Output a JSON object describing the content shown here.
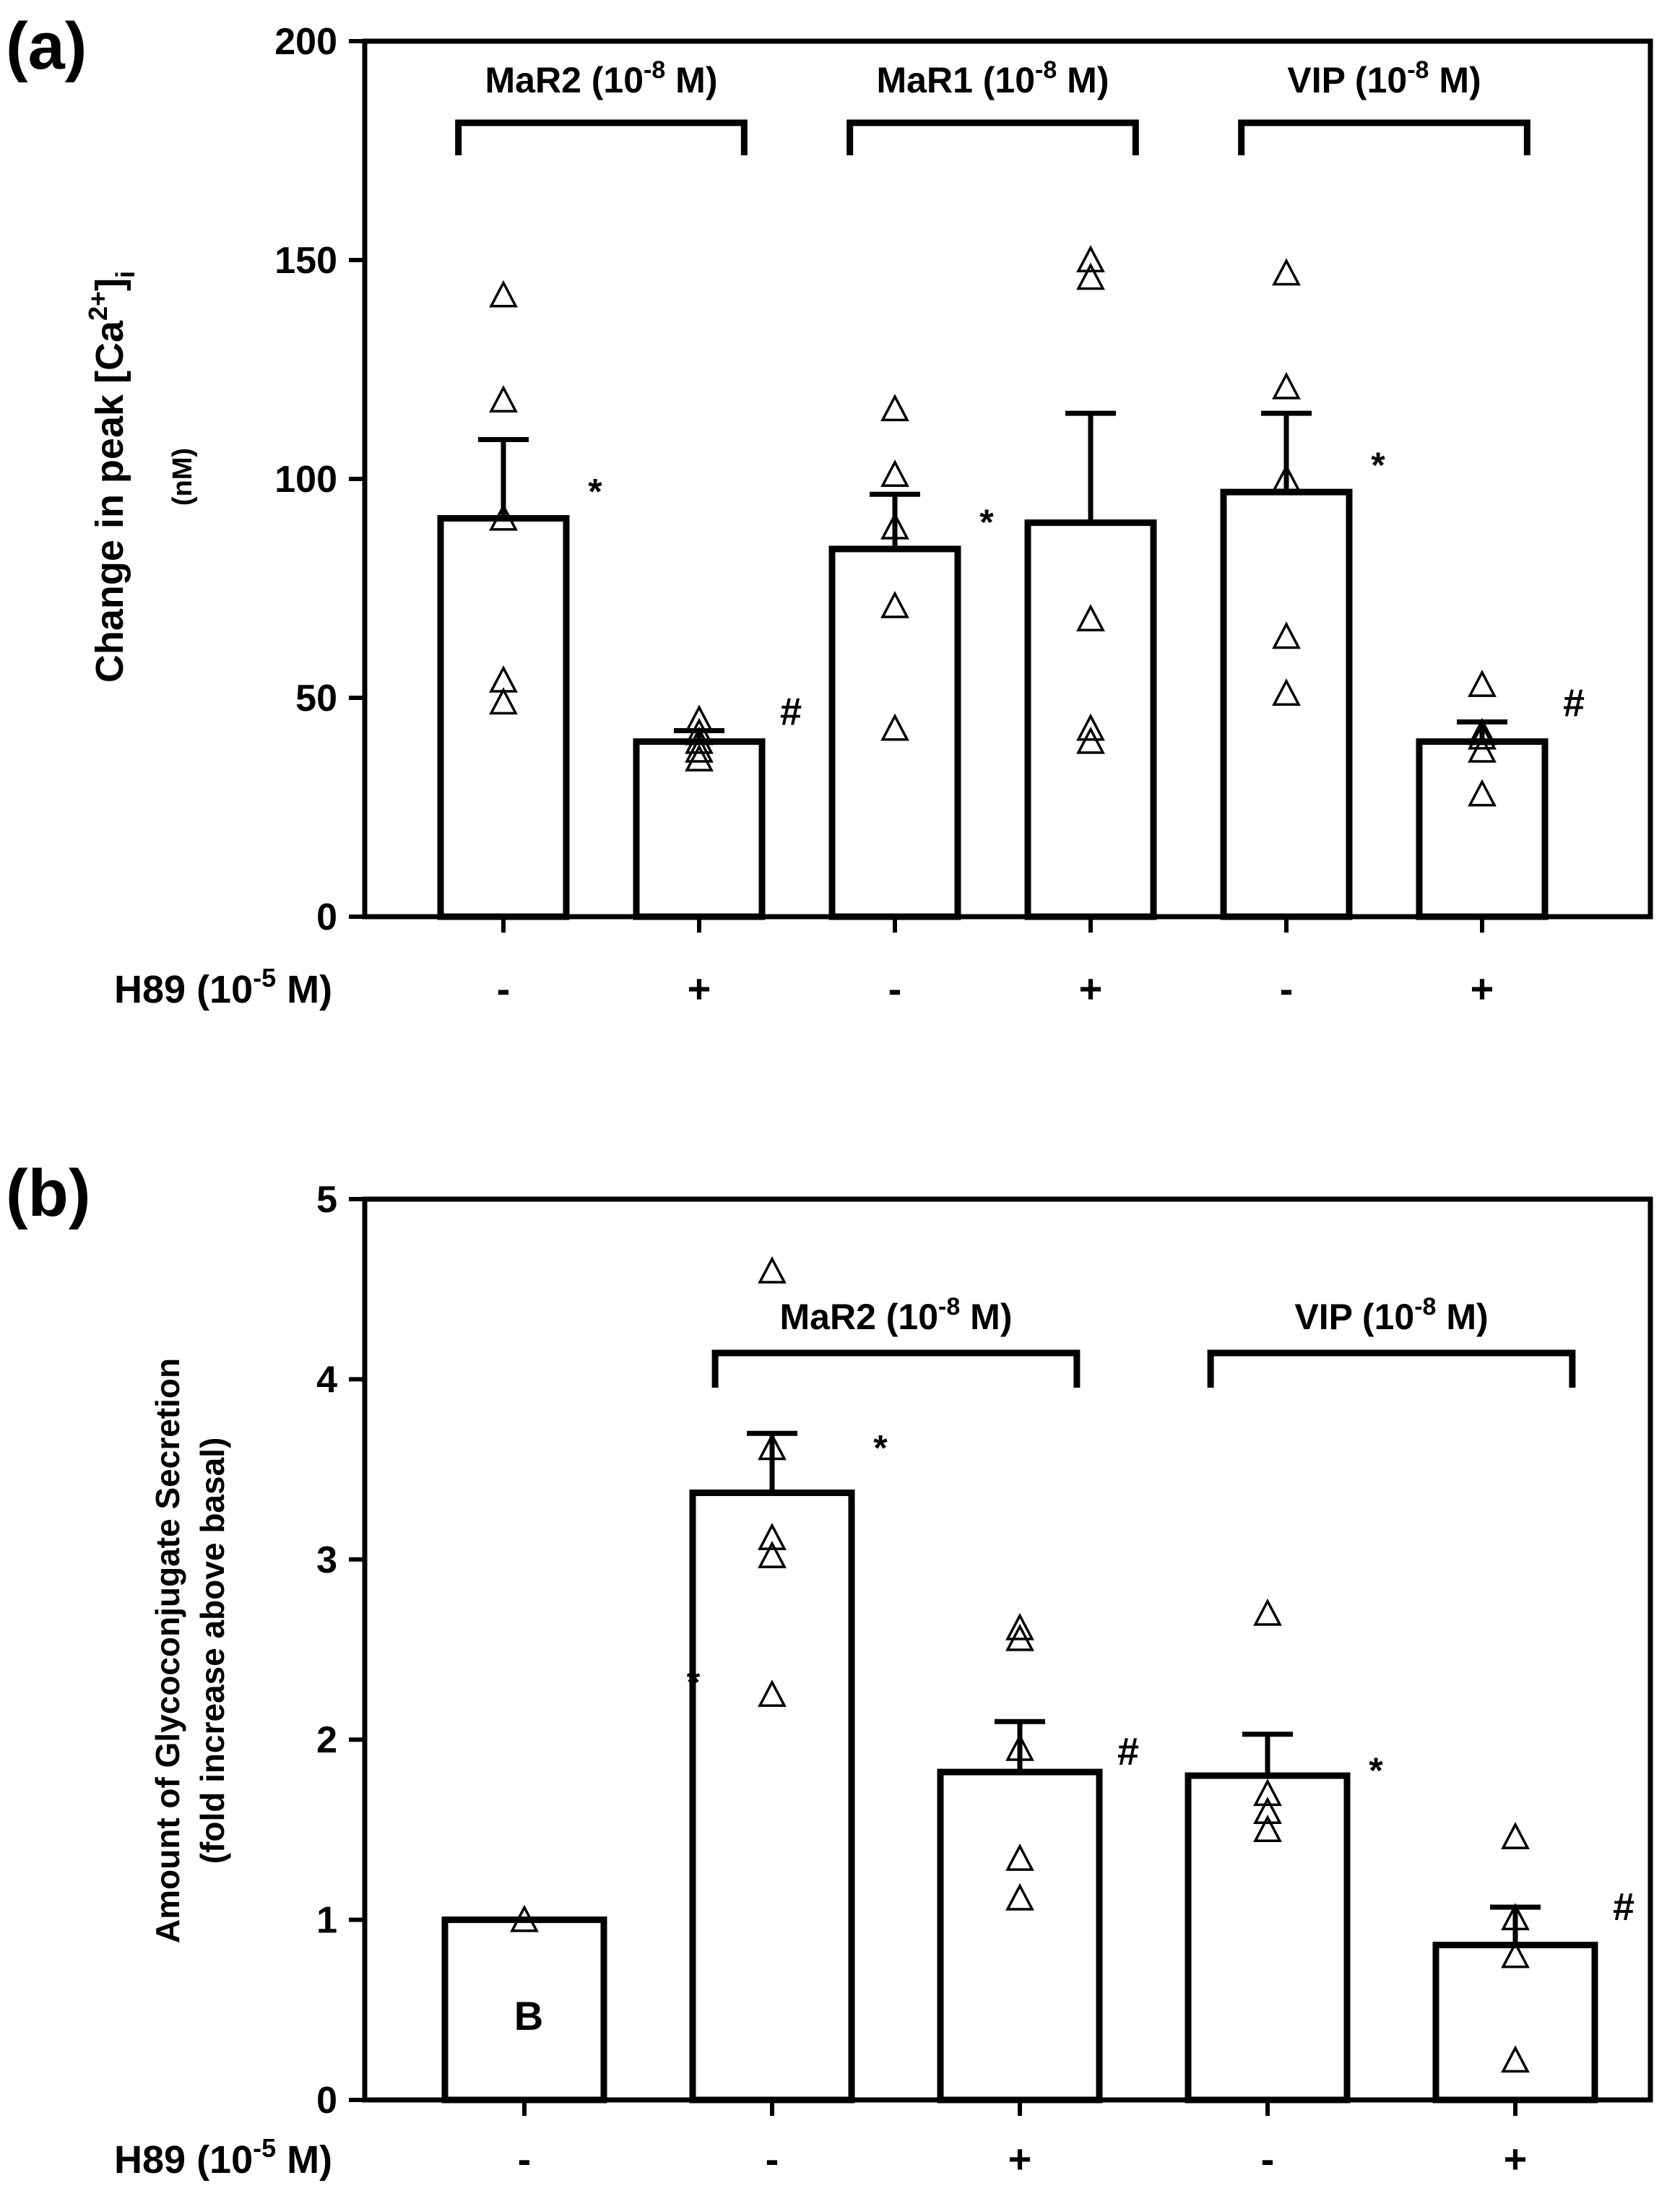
{
  "chart_data": [
    {
      "type": "bar",
      "panel_label": "(a)",
      "ylabel": "Change in peak [Ca",
      "ylabel_sup": "2+",
      "ylabel_after": "]",
      "ylabel_sub": "i",
      "ylabel_unit": "(nM)",
      "ylim": [
        0,
        200
      ],
      "yticks": [
        0,
        50,
        100,
        150,
        200
      ],
      "row_label": "H89 (10",
      "row_label_exp": "-5",
      "row_label_unit": " M)",
      "categories": [
        "-",
        "+",
        "-",
        "+",
        "-",
        "+"
      ],
      "values": [
        91,
        40,
        84,
        90,
        97,
        40
      ],
      "errors": [
        18,
        2.5,
        12.5,
        25,
        18,
        4.5
      ],
      "points": [
        [
          142,
          118,
          91,
          54,
          49
        ],
        [
          45,
          42,
          40,
          38,
          36
        ],
        [
          116,
          101,
          89,
          71,
          43
        ],
        [
          150,
          146,
          68,
          43,
          40
        ],
        [
          147,
          121,
          100,
          64,
          51
        ],
        [
          53,
          42,
          41,
          38,
          28
        ]
      ],
      "marks": [
        "*",
        "#",
        "*",
        "",
        "*",
        "#"
      ],
      "groups": [
        {
          "label": "MaR2 (10",
          "exp": "-8",
          "unit": " M)",
          "from": 0,
          "to": 1
        },
        {
          "label": "MaR1 (10",
          "exp": "-8",
          "unit": " M)",
          "from": 2,
          "to": 3
        },
        {
          "label": "VIP (10",
          "exp": "-8",
          "unit": " M)",
          "from": 4,
          "to": 5
        }
      ]
    },
    {
      "type": "bar",
      "panel_label": "(b)",
      "ylabel": "Amount of Glycoconjugate Secretion",
      "ylabel_unit": "(fold increase above basal)",
      "ylim": [
        0,
        5
      ],
      "yticks": [
        0,
        1,
        2,
        3,
        4,
        5
      ],
      "row_label": "H89 (10",
      "row_label_exp": "-5",
      "row_label_unit": " M)",
      "categories": [
        "-",
        "-",
        "+",
        "-",
        "+"
      ],
      "values": [
        1.0,
        3.37,
        1.82,
        1.8,
        0.86
      ],
      "errors": [
        0,
        0.33,
        0.28,
        0.23,
        0.21
      ],
      "points": [
        [
          1.0
        ],
        [
          4.6,
          3.62,
          3.12,
          3.02,
          2.25
        ],
        [
          2.62,
          2.56,
          1.95,
          1.34,
          1.12
        ],
        [
          2.7,
          1.7,
          1.6,
          1.5
        ],
        [
          1.46,
          1.01,
          0.8,
          0.22
        ]
      ],
      "marks": [
        "",
        "*",
        "#",
        "*",
        "#"
      ],
      "basal_label": "B",
      "stray_mark": "*",
      "groups": [
        {
          "label": "MaR2 (10",
          "exp": "-8",
          "unit": " M)",
          "from": 1,
          "to": 2
        },
        {
          "label": "VIP (10",
          "exp": "-8",
          "unit": " M)",
          "from": 3,
          "to": 4
        }
      ]
    }
  ]
}
